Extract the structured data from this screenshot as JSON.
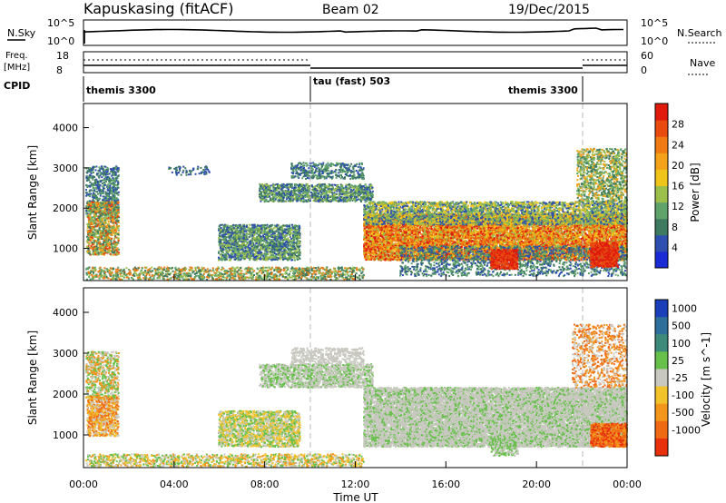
{
  "header": {
    "station": "Kapuskasing (fitACF)",
    "beam": "Beam 02",
    "date": "19/Dec/2015"
  },
  "summary_panels": {
    "nsky_label": "N.Sky",
    "nsearch_label": "N.Search",
    "nsky_ticks": [
      "10^5",
      "10^0"
    ],
    "nsearch_ticks": [
      "10^5",
      "10^0"
    ],
    "freq_label_1": "Freq.",
    "freq_label_2": "[MHz]",
    "freq_ticks": [
      "18",
      "8"
    ],
    "nave_label": "Nave",
    "nave_ticks": [
      "60",
      "0"
    ],
    "cpid_label": "CPID",
    "cpid_segments": [
      "themis 3300",
      "tau (fast) 503",
      "themis 3300"
    ]
  },
  "colors": {
    "power_scale": [
      "#1a2bd6",
      "#2f4fb0",
      "#3d7a5f",
      "#5fa36b",
      "#9bbf4a",
      "#f0c419",
      "#f3a21a",
      "#f07a14",
      "#e84a10",
      "#e01a0c"
    ],
    "velocity_scale": [
      "#1a3fb8",
      "#2e6e9a",
      "#3d8a7a",
      "#66c04a",
      "#c8c8c0",
      "#f2c22a",
      "#f3961c",
      "#f06a14",
      "#e8300c"
    ]
  },
  "chart_data": [
    {
      "type": "line",
      "title": "N.Sky / N.Search",
      "x": [
        "00:00",
        "04:00",
        "08:00",
        "12:00",
        "16:00",
        "20:00",
        "00:00"
      ],
      "ylim": [
        0,
        5
      ],
      "scale": "log"
    },
    {
      "type": "line",
      "title": "Freq. / Nave",
      "freq_mhz": {
        "ylim": [
          8,
          18
        ],
        "approx_value": 10.5
      },
      "nave": {
        "ylim": [
          0,
          60
        ],
        "approx_value": 25
      }
    },
    {
      "type": "heatmap",
      "ylabel": "Slant Range [km]",
      "xlabel": "Time UT",
      "x_ticks": [
        "00:00",
        "04:00",
        "08:00",
        "12:00",
        "16:00",
        "20:00",
        "00:00"
      ],
      "y_ticks": [
        1000,
        2000,
        3000,
        4000
      ],
      "ylim": [
        200,
        4600
      ],
      "colorbar": {
        "label": "Power [dB]",
        "ticks": [
          4,
          8,
          12,
          16,
          20,
          24,
          28
        ]
      }
    },
    {
      "type": "heatmap",
      "ylabel": "Slant Range [km]",
      "xlabel": "Time UT",
      "x_ticks": [
        "00:00",
        "04:00",
        "08:00",
        "12:00",
        "16:00",
        "20:00",
        "00:00"
      ],
      "y_ticks": [
        1000,
        2000,
        3000,
        4000
      ],
      "ylim": [
        200,
        4600
      ],
      "colorbar": {
        "label": "Velocity [m s^-1]",
        "ticks": [
          1000,
          500,
          100,
          25,
          -25,
          -100,
          -500,
          -1000
        ]
      }
    }
  ]
}
